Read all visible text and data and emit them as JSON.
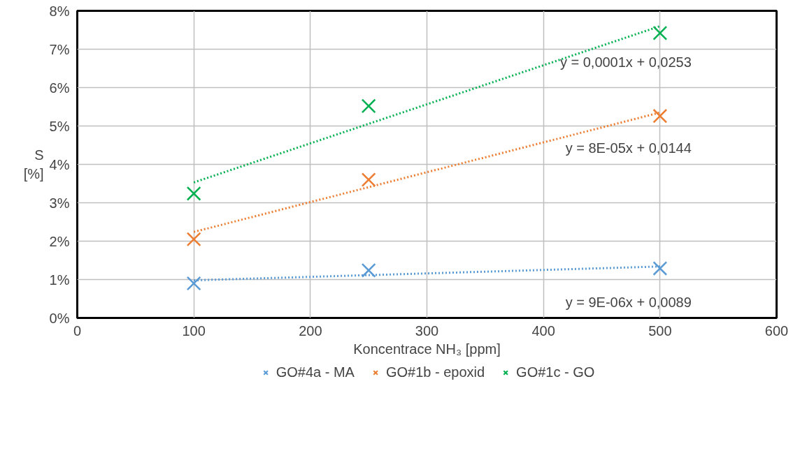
{
  "chart_data": {
    "type": "scatter",
    "xlabel": "Koncentrace NH₃ [ppm]",
    "ylabel": "S\n[%]",
    "xlim": [
      0,
      600
    ],
    "xticks": [
      0,
      100,
      200,
      300,
      400,
      500,
      600
    ],
    "ylim": [
      0,
      8
    ],
    "yticks": [
      {
        "value": 0,
        "label": "0%"
      },
      {
        "value": 1,
        "label": "1%"
      },
      {
        "value": 2,
        "label": "2%"
      },
      {
        "value": 3,
        "label": "3%"
      },
      {
        "value": 4,
        "label": "4%"
      },
      {
        "value": 5,
        "label": "5%"
      },
      {
        "value": 6,
        "label": "6%"
      },
      {
        "value": 7,
        "label": "7%"
      },
      {
        "value": 8,
        "label": "8%"
      }
    ],
    "grid": true,
    "legend": "bottom",
    "marker": "cross",
    "series": [
      {
        "name": "GO#4a - MA",
        "color": "#5b9bd5",
        "x": [
          100,
          250,
          500
        ],
        "values": [
          0.9,
          1.24,
          1.29
        ]
      },
      {
        "name": "GO#1b - epoxid",
        "color": "#ed7d31",
        "x": [
          100,
          250,
          500
        ],
        "values": [
          2.05,
          3.6,
          5.26
        ]
      },
      {
        "name": "GO#1c - GO",
        "color": "#00b050",
        "x": [
          100,
          250,
          500
        ],
        "values": [
          3.24,
          5.52,
          7.42
        ]
      },
      {
        "color": "#5b9bd5",
        "type": "line",
        "marker": "none",
        "line_style": "dotted",
        "x": [
          100,
          500
        ],
        "values": [
          0.98,
          1.34
        ]
      },
      {
        "color": "#ed7d31",
        "type": "line",
        "marker": "none",
        "line_style": "dotted",
        "x": [
          100,
          500
        ],
        "values": [
          2.24,
          5.35
        ]
      },
      {
        "color": "#00b050",
        "type": "line",
        "marker": "none",
        "line_style": "dotted",
        "x": [
          100,
          500
        ],
        "values": [
          3.53,
          7.6
        ]
      }
    ],
    "annotations": [
      "y = 9E-06x + 0,0089",
      "y = 8E-05x + 0,0144",
      "y = 0,0001x + 0,0253"
    ]
  }
}
